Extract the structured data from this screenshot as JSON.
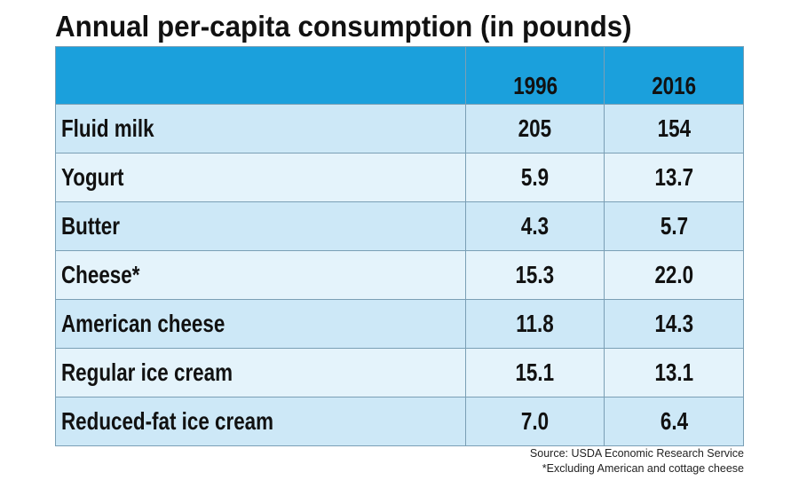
{
  "header": {
    "title": "Annual per-capita consumption (in pounds)"
  },
  "table": {
    "columns": [
      "1996",
      "2016"
    ],
    "rows": [
      [
        "Fluid milk",
        "205",
        "154"
      ],
      [
        "Yogurt",
        "5.9",
        "13.7"
      ],
      [
        "Butter",
        "4.3",
        "5.7"
      ],
      [
        "Cheese*",
        "15.3",
        "22.0"
      ],
      [
        "American cheese",
        "11.8",
        "14.3"
      ],
      [
        "Regular ice cream",
        "15.1",
        "13.1"
      ],
      [
        "Reduced-fat ice cream",
        "7.0",
        "6.4"
      ]
    ]
  },
  "footer": {
    "source": "Source: USDA Economic Research Service",
    "note": "*Excluding American and cottage cheese"
  }
}
